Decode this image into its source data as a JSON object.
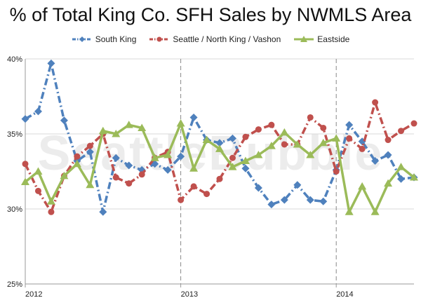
{
  "chart_data": {
    "type": "line",
    "title": "% of Total King Co. SFH Sales by NWMLS Area",
    "xlabel": "",
    "ylabel": "",
    "ylim": [
      25,
      40
    ],
    "yticks": [
      "25%",
      "30%",
      "35%",
      "40%"
    ],
    "xticks": [
      {
        "index": 0,
        "label": "2012"
      },
      {
        "index": 12,
        "label": "2013"
      },
      {
        "index": 24,
        "label": "2014"
      }
    ],
    "grid": "horizontal",
    "legend_position": "top",
    "year_dividers": [
      12,
      24
    ],
    "watermark": "SeattleBubble",
    "series": [
      {
        "name": "South King",
        "color": "#4f81bd",
        "marker": "diamond",
        "line": "dash-dot",
        "values": [
          36.0,
          36.5,
          39.7,
          35.9,
          33.2,
          33.8,
          29.8,
          33.4,
          32.9,
          32.6,
          33.0,
          32.6,
          33.5,
          36.1,
          34.6,
          34.4,
          34.7,
          32.7,
          31.4,
          30.3,
          30.6,
          31.6,
          30.6,
          30.5,
          32.6,
          35.6,
          34.5,
          33.2,
          33.6,
          32.0,
          32.1
        ]
      },
      {
        "name": "Seattle / North King / Vashon",
        "color": "#c0504d",
        "marker": "circle",
        "line": "dash-dot",
        "values": [
          33.0,
          31.2,
          29.8,
          32.2,
          33.5,
          34.2,
          35.0,
          32.1,
          31.7,
          32.3,
          33.4,
          33.8,
          30.6,
          31.5,
          31.0,
          32.0,
          33.4,
          34.8,
          35.3,
          35.6,
          34.3,
          34.3,
          36.1,
          35.4,
          32.5,
          34.7,
          34.0,
          37.1,
          34.6,
          35.2,
          35.7
        ]
      },
      {
        "name": "Eastside",
        "color": "#9bbb59",
        "marker": "triangle",
        "line": "solid",
        "values": [
          31.8,
          32.5,
          30.5,
          32.2,
          33.0,
          31.6,
          35.2,
          35.0,
          35.6,
          35.4,
          33.4,
          33.6,
          35.7,
          32.7,
          34.6,
          34.0,
          32.8,
          33.2,
          33.6,
          34.2,
          35.1,
          34.3,
          33.6,
          34.4,
          34.7,
          29.8,
          31.5,
          29.8,
          31.7,
          32.8,
          32.1
        ]
      }
    ]
  }
}
